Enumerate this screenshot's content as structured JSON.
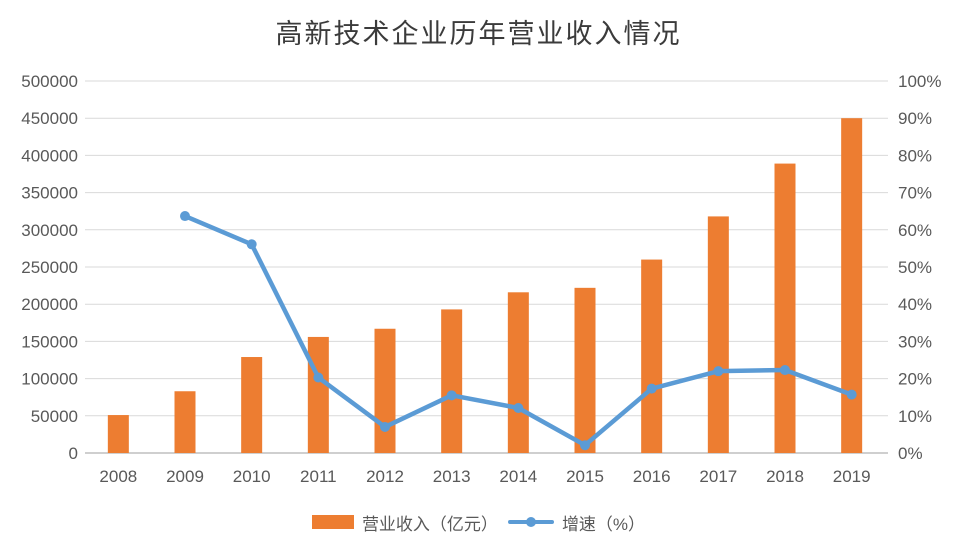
{
  "title": "高新技术企业历年营业收入情况",
  "colors": {
    "bar": "#ED7D31",
    "line": "#5B9BD5",
    "grid": "#D9D9D9",
    "axis": "#BFBFBF",
    "text": "#595959",
    "title": "#3B3B3B"
  },
  "legend": [
    {
      "label": "营业收入（亿元）",
      "type": "bar"
    },
    {
      "label": "增速（%）",
      "type": "line"
    }
  ],
  "chart_data": {
    "type": "bar+line combo",
    "title": "高新技术企业历年营业收入情况",
    "categories": [
      "2008",
      "2009",
      "2010",
      "2011",
      "2012",
      "2013",
      "2014",
      "2015",
      "2016",
      "2017",
      "2018",
      "2019"
    ],
    "series": [
      {
        "name": "营业收入（亿元）",
        "type": "bar",
        "axis": "left",
        "values": [
          51000,
          83000,
          129000,
          156000,
          167000,
          193000,
          216000,
          222000,
          260000,
          318000,
          389000,
          450000
        ]
      },
      {
        "name": "增速（%）",
        "type": "line",
        "axis": "right",
        "values": [
          null,
          63.7,
          56.1,
          20.3,
          7.0,
          15.5,
          12.1,
          2.1,
          17.3,
          22.0,
          22.3,
          15.7
        ]
      }
    ],
    "left_axis": {
      "min": 0,
      "max": 500000,
      "tick_step": 50000,
      "ticks": [
        "500000",
        "450000",
        "400000",
        "350000",
        "300000",
        "250000",
        "200000",
        "150000",
        "100000",
        "50000",
        "0"
      ]
    },
    "right_axis": {
      "min": 0,
      "max": 100,
      "tick_step": 10,
      "ticks": [
        "100%",
        "90%",
        "80%",
        "70%",
        "60%",
        "50%",
        "40%",
        "30%",
        "20%",
        "10%",
        "0%"
      ]
    },
    "grid": "horizontal gridlines on",
    "legend_position": "bottom"
  }
}
